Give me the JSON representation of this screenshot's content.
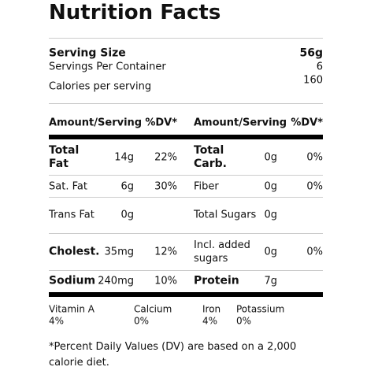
{
  "title": "Nutrition Facts",
  "serving": {
    "size_label": "Serving Size",
    "size": "56g",
    "servings_label": "Servings Per Container",
    "servings": "6",
    "calories_label": "Calories per serving",
    "calories": "160"
  },
  "table": {
    "headers": [
      "Amount/Serving",
      "%DV*",
      "Amount/Serving",
      "%DV*"
    ],
    "rows": [
      {
        "left": {
          "name": "Total Fat",
          "bold": true,
          "amount": "14g",
          "dv": "22%"
        },
        "right": {
          "name": "Total Carb.",
          "bold": true,
          "amount": "0g",
          "dv": "0%"
        }
      },
      {
        "left": {
          "name": "Sat. Fat",
          "amount": "6g",
          "dv": "30%"
        },
        "right": {
          "name": "Fiber",
          "amount": "0g",
          "dv": "0%"
        }
      },
      {
        "left": {
          "name": "Trans Fat",
          "amount": "0g"
        },
        "right": {
          "name": "Total Sugars",
          "amount": "0g"
        }
      },
      {
        "left": {
          "name": "Cholest.",
          "bold": true,
          "amount": "35mg",
          "dv": "12%"
        },
        "right": {
          "name": "Incl. added sugars",
          "amount": "0g",
          "dv": "0%"
        }
      },
      {
        "left": {
          "name": "Sodium",
          "bold": true,
          "amount": "240mg",
          "dv": "10%"
        },
        "right": {
          "name": "Protein",
          "bold": true,
          "amount": "7g"
        }
      }
    ]
  },
  "vitamins": [
    {
      "name": "Vitamin A",
      "dv": "4%"
    },
    {
      "name": "Calcium",
      "dv": "0%"
    },
    {
      "name": "Iron",
      "dv": "4%"
    },
    {
      "name": "Potassium",
      "dv": "0%"
    }
  ],
  "footnote": "*Percent Daily Values (DV) are based on a 2,000 calorie diet."
}
